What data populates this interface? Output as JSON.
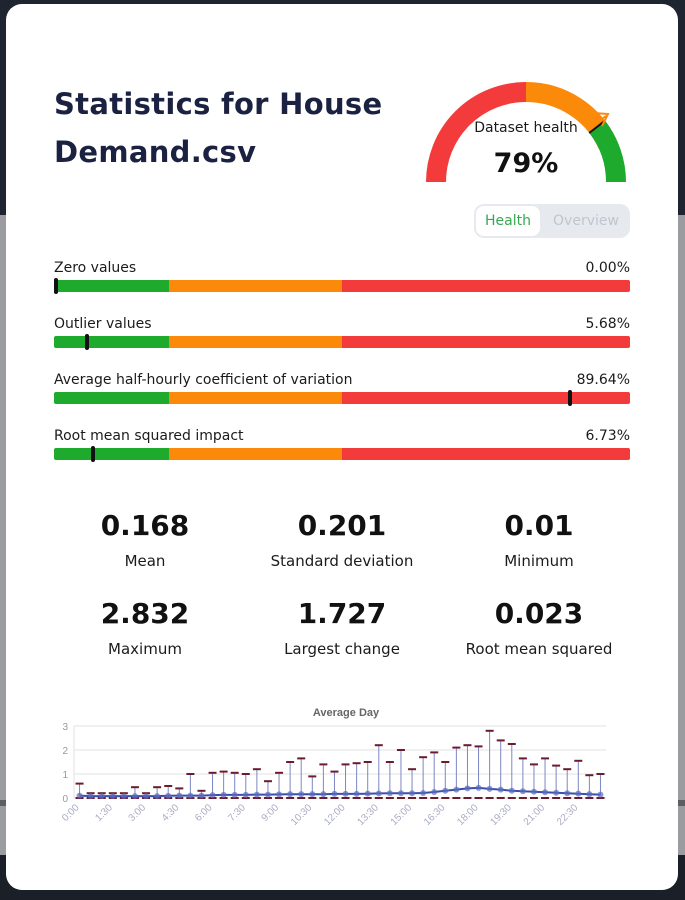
{
  "title": "Statistics for House Demand.csv",
  "gauge": {
    "label": "Dataset health",
    "value_text": "79%",
    "value": 79,
    "colors": {
      "red": "#f43b3b",
      "orange": "#fb8a0b",
      "green": "#1eaa2c"
    }
  },
  "toggle": {
    "health": "Health",
    "overview": "Overview"
  },
  "metrics": [
    {
      "label": "Zero values",
      "value_text": "0.00%",
      "value": 0.0
    },
    {
      "label": "Outlier values",
      "value_text": "5.68%",
      "value": 5.68
    },
    {
      "label": "Average half-hourly coefficient of variation",
      "value_text": "89.64%",
      "value": 89.64
    },
    {
      "label": "Root mean squared impact",
      "value_text": "6.73%",
      "value": 6.73
    }
  ],
  "stats": [
    {
      "value": "0.168",
      "label": "Mean"
    },
    {
      "value": "0.201",
      "label": "Standard deviation"
    },
    {
      "value": "0.01",
      "label": "Minimum"
    },
    {
      "value": "2.832",
      "label": "Maximum"
    },
    {
      "value": "1.727",
      "label": "Largest change"
    },
    {
      "value": "0.023",
      "label": "Root mean squared"
    }
  ],
  "chart_data": {
    "type": "line",
    "title": "Average Day",
    "xlabel": "",
    "ylabel": "",
    "ylim": [
      0,
      3
    ],
    "yticks": [
      0,
      1,
      2,
      3
    ],
    "grid": true,
    "x": [
      "0:00",
      "0:30",
      "1:00",
      "1:30",
      "2:00",
      "2:30",
      "3:00",
      "3:30",
      "4:00",
      "4:30",
      "5:00",
      "5:30",
      "6:00",
      "6:30",
      "7:00",
      "7:30",
      "8:00",
      "8:30",
      "9:00",
      "9:30",
      "10:00",
      "10:30",
      "11:00",
      "11:30",
      "12:00",
      "12:30",
      "13:00",
      "13:30",
      "14:00",
      "14:30",
      "15:00",
      "15:30",
      "16:00",
      "16:30",
      "17:00",
      "17:30",
      "18:00",
      "18:30",
      "19:00",
      "19:30",
      "20:00",
      "20:30",
      "21:00",
      "21:30",
      "22:00",
      "22:30",
      "23:00",
      "23:30"
    ],
    "x_tick_labels": [
      "0:00",
      "1:30",
      "3:00",
      "4:30",
      "6:00",
      "7:30",
      "9:00",
      "10:30",
      "12:00",
      "13:30",
      "15:00",
      "16:30",
      "18:00",
      "19:30",
      "21:00",
      "22:30"
    ],
    "series": [
      {
        "values": [
          0.1,
          0.08,
          0.08,
          0.08,
          0.08,
          0.08,
          0.08,
          0.08,
          0.09,
          0.1,
          0.1,
          0.1,
          0.12,
          0.13,
          0.13,
          0.13,
          0.14,
          0.14,
          0.15,
          0.16,
          0.16,
          0.16,
          0.16,
          0.17,
          0.17,
          0.17,
          0.18,
          0.19,
          0.2,
          0.2,
          0.2,
          0.21,
          0.25,
          0.3,
          0.35,
          0.4,
          0.42,
          0.38,
          0.35,
          0.3,
          0.28,
          0.26,
          0.24,
          0.22,
          0.2,
          0.18,
          0.16,
          0.14
        ]
      },
      {
        "values": [
          0.6,
          0.2,
          0.2,
          0.2,
          0.2,
          0.45,
          0.2,
          0.45,
          0.5,
          0.4,
          1.0,
          0.3,
          1.05,
          1.1,
          1.05,
          1.0,
          1.2,
          0.7,
          1.05,
          1.5,
          1.65,
          0.9,
          1.4,
          1.1,
          1.4,
          1.45,
          1.5,
          2.2,
          1.5,
          2.0,
          1.2,
          1.7,
          1.9,
          1.5,
          2.1,
          2.2,
          2.15,
          2.8,
          2.4,
          2.25,
          1.65,
          1.4,
          1.65,
          1.35,
          1.2,
          1.55,
          0.95,
          1.0
        ]
      }
    ],
    "colors": {
      "line": "#3b4ea8",
      "whisker": "#6b1c2c"
    }
  }
}
